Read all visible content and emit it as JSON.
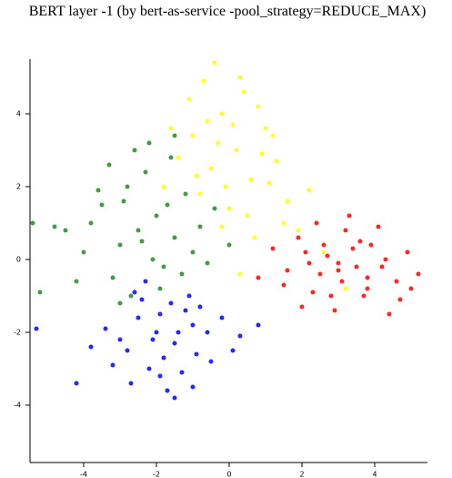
{
  "chart_data": {
    "type": "scatter",
    "title": "BERT layer -1 (by bert-as-service -pool_strategy=REDUCE_MAX)",
    "xlim": [
      -5.475,
      5.45
    ],
    "ylim": [
      -5.575,
      5.5
    ],
    "xticks": [
      -4,
      -2,
      0,
      2,
      4
    ],
    "yticks": [
      -4,
      -2,
      0,
      2,
      4
    ],
    "series": [
      {
        "color": "#228b22",
        "x": [
          -2.5,
          -2.0,
          -3.0,
          -1.5,
          -3.5,
          -2.8,
          -1.8,
          -1.2,
          -4.0,
          -3.2,
          -2.3,
          -0.8,
          -2.7,
          -1.6,
          -4.5,
          -3.8,
          -2.1,
          -1.0,
          -3.3,
          -2.6,
          -0.4,
          -5.4,
          -1.9,
          -4.2,
          -2.9,
          -1.3,
          -3.6,
          -2.4,
          0.0,
          -1.7,
          -5.2,
          -3.0,
          -2.2,
          -1.5,
          -4.8,
          -0.6
        ],
        "values": [
          0.8,
          1.2,
          0.4,
          0.6,
          1.5,
          2.0,
          -0.2,
          1.8,
          0.2,
          -0.5,
          2.4,
          0.9,
          -1.0,
          2.8,
          0.8,
          1.0,
          0.0,
          0.2,
          2.6,
          3.0,
          1.4,
          1.0,
          -0.8,
          -0.6,
          1.6,
          -0.4,
          1.9,
          0.5,
          0.4,
          1.5,
          -0.9,
          -1.2,
          3.2,
          3.4,
          0.9,
          -0.1
        ]
      },
      {
        "color": "#ffff00",
        "x": [
          -0.5,
          0.2,
          -1.0,
          0.6,
          -0.2,
          1.0,
          -1.4,
          0.4,
          -0.8,
          0.0,
          1.3,
          -0.3,
          0.8,
          -1.8,
          0.3,
          1.6,
          -0.6,
          0.9,
          -1.1,
          1.9,
          -0.1,
          0.5,
          2.2,
          -0.4,
          1.2,
          -1.6,
          0.7,
          -0.9,
          1.5,
          0.1,
          2.6,
          -0.7,
          1.1,
          0.3,
          3.2,
          -0.2
        ],
        "values": [
          2.5,
          3.0,
          3.4,
          2.2,
          4.0,
          3.6,
          2.8,
          4.6,
          1.8,
          1.4,
          2.7,
          3.2,
          4.2,
          2.0,
          5.0,
          1.6,
          3.8,
          2.9,
          4.4,
          0.8,
          2.0,
          1.2,
          1.9,
          5.4,
          3.4,
          3.6,
          0.6,
          2.3,
          1.0,
          3.7,
          0.2,
          4.9,
          2.1,
          -0.4,
          -0.8,
          0.9
        ]
      },
      {
        "color": "#0000ff",
        "x": [
          -2.0,
          -1.5,
          -1.0,
          -2.5,
          -3.0,
          -1.8,
          -1.2,
          -0.6,
          -2.2,
          -2.8,
          -3.4,
          -1.6,
          -0.9,
          -0.2,
          0.3,
          -2.4,
          -1.9,
          -1.3,
          -3.8,
          -2.6,
          -1.1,
          -0.5,
          -1.7,
          -2.1,
          -4.2,
          -0.8,
          0.8,
          -3.2,
          -1.4,
          -2.3,
          -1.0,
          -1.9,
          -2.7,
          0.1,
          -5.3,
          -1.5
        ],
        "values": [
          -2.0,
          -2.3,
          -1.8,
          -1.6,
          -2.2,
          -2.7,
          -1.4,
          -2.0,
          -3.0,
          -2.5,
          -1.9,
          -1.2,
          -2.6,
          -1.6,
          -2.1,
          -1.1,
          -3.2,
          -3.1,
          -2.4,
          -0.9,
          -1.0,
          -2.8,
          -3.6,
          -2.2,
          -3.4,
          -1.3,
          -1.8,
          -2.9,
          -2.0,
          -0.6,
          -3.5,
          -1.5,
          -3.4,
          -2.5,
          -1.9,
          -3.8
        ]
      },
      {
        "color": "#ff0000",
        "x": [
          2.1,
          2.5,
          3.0,
          3.4,
          3.8,
          4.2,
          4.6,
          5.0,
          2.8,
          3.2,
          3.6,
          1.6,
          1.9,
          2.3,
          2.7,
          3.1,
          3.5,
          3.9,
          4.3,
          4.7,
          5.2,
          2.0,
          2.4,
          2.9,
          3.3,
          3.7,
          4.1,
          1.2,
          1.5,
          4.4,
          3.0,
          2.6,
          3.8,
          2.2,
          4.9,
          0.8
        ],
        "values": [
          0.2,
          -0.4,
          -0.1,
          0.3,
          -0.5,
          -0.2,
          -0.6,
          -0.8,
          -1.0,
          0.8,
          0.5,
          -0.3,
          0.6,
          -0.9,
          0.1,
          -0.6,
          -0.2,
          0.4,
          0.0,
          -1.1,
          -0.4,
          -1.3,
          1.0,
          -1.4,
          1.2,
          -1.0,
          0.9,
          0.3,
          -0.7,
          -1.5,
          -0.3,
          0.4,
          -0.8,
          -0.1,
          0.2,
          -0.5
        ]
      }
    ]
  }
}
